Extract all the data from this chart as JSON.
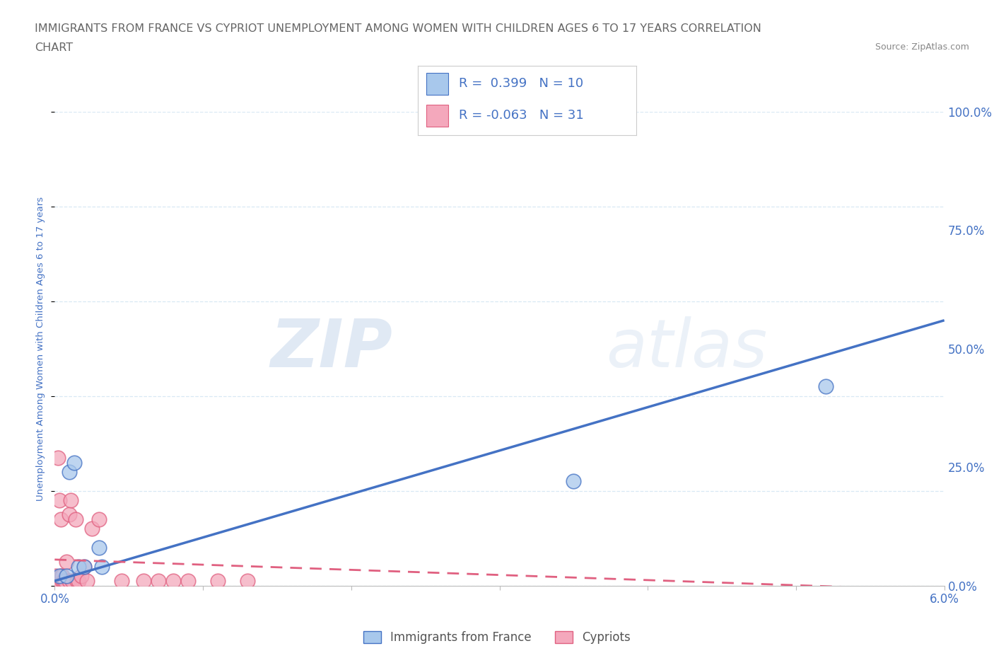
{
  "title_line1": "IMMIGRANTS FROM FRANCE VS CYPRIOT UNEMPLOYMENT AMONG WOMEN WITH CHILDREN AGES 6 TO 17 YEARS CORRELATION",
  "title_line2": "CHART",
  "source": "Source: ZipAtlas.com",
  "ylabel": "Unemployment Among Women with Children Ages 6 to 17 years",
  "xmin": 0.0,
  "xmax": 0.06,
  "ymin": 0.0,
  "ymax": 1.0,
  "yticks": [
    0.0,
    0.25,
    0.5,
    0.75,
    1.0
  ],
  "ytick_labels": [
    "0.0%",
    "25.0%",
    "50.0%",
    "75.0%",
    "100.0%"
  ],
  "xticks": [
    0.0,
    0.01,
    0.02,
    0.03,
    0.04,
    0.05,
    0.06
  ],
  "xtick_labels": [
    "0.0%",
    "",
    "",
    "",
    "",
    "",
    "6.0%"
  ],
  "blue_scatter_x": [
    0.0003,
    0.0008,
    0.001,
    0.0013,
    0.0016,
    0.002,
    0.003,
    0.0032,
    0.035,
    0.052
  ],
  "blue_scatter_y": [
    0.02,
    0.02,
    0.24,
    0.26,
    0.04,
    0.04,
    0.08,
    0.04,
    0.22,
    0.42
  ],
  "pink_scatter_x": [
    0.0001,
    0.0002,
    0.0002,
    0.0003,
    0.0003,
    0.0004,
    0.0004,
    0.0005,
    0.0005,
    0.0006,
    0.0007,
    0.0008,
    0.001,
    0.001,
    0.0011,
    0.0012,
    0.0014,
    0.0015,
    0.0016,
    0.0018,
    0.002,
    0.0022,
    0.0025,
    0.003,
    0.0045,
    0.006,
    0.007,
    0.008,
    0.009,
    0.011,
    0.013
  ],
  "pink_scatter_y": [
    0.02,
    0.27,
    0.01,
    0.18,
    0.01,
    0.14,
    0.02,
    0.01,
    0.02,
    0.01,
    0.01,
    0.05,
    0.01,
    0.15,
    0.18,
    0.01,
    0.14,
    0.01,
    0.01,
    0.02,
    0.04,
    0.01,
    0.12,
    0.14,
    0.01,
    0.01,
    0.01,
    0.01,
    0.01,
    0.01,
    0.01
  ],
  "blue_color": "#A8C8EC",
  "pink_color": "#F4A8BC",
  "blue_line_color": "#4472C4",
  "pink_line_color": "#E06080",
  "blue_trend_x0": 0.0,
  "blue_trend_y0": 0.01,
  "blue_trend_x1": 0.06,
  "blue_trend_y1": 0.56,
  "pink_trend_x0": 0.0,
  "pink_trend_y0": 0.055,
  "pink_trend_x1": 0.06,
  "pink_trend_y1": -0.01,
  "R_blue": 0.399,
  "N_blue": 10,
  "R_pink": -0.063,
  "N_pink": 31,
  "watermark_zip": "ZIP",
  "watermark_atlas": "atlas",
  "background_color": "#FFFFFF",
  "grid_color": "#D8E8F4",
  "title_color": "#666666",
  "axis_label_color": "#4472C4",
  "tick_color": "#4472C4",
  "source_color": "#888888"
}
